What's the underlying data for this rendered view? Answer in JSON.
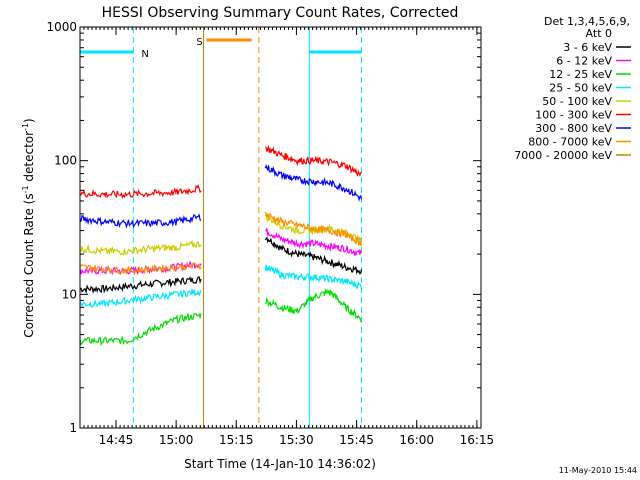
{
  "chart_data": {
    "type": "line",
    "title": "HESSI Observing Summary Count Rates, Corrected",
    "xlabel": "Start Time (14-Jan-10 14:36:02)",
    "ylabel_main": "Corrected Count Rate (s",
    "ylabel_sup1": "-1",
    "ylabel_mid": " detector",
    "ylabel_sup2": "-1",
    "ylabel_end": ")",
    "yscale": "log",
    "ylim": [
      1,
      1000
    ],
    "xlim_min": [
      0,
      100
    ],
    "x_unit": "minutes after 14:36:02",
    "yticks": [
      {
        "v": 1,
        "label": "1"
      },
      {
        "v": 10,
        "label": "10"
      },
      {
        "v": 100,
        "label": "100"
      },
      {
        "v": 1000,
        "label": "1000"
      }
    ],
    "xticks": [
      {
        "t": 8.97,
        "label": "14:45"
      },
      {
        "t": 23.97,
        "label": "15:00"
      },
      {
        "t": 38.97,
        "label": "15:15"
      },
      {
        "t": 53.97,
        "label": "15:30"
      },
      {
        "t": 68.97,
        "label": "15:45"
      },
      {
        "t": 83.97,
        "label": "16:00"
      },
      {
        "t": 98.97,
        "label": "16:15"
      }
    ],
    "legend_header": [
      "Det 1,3,4,5,6,9,",
      "Att 0"
    ],
    "series": [
      {
        "name": "3 - 6 keV",
        "color": "#000000",
        "before": [
          11,
          11,
          11.5,
          12,
          12.5,
          13
        ],
        "after": [
          27,
          22,
          20,
          19,
          17.5,
          16,
          15
        ]
      },
      {
        "name": "6 - 12 keV",
        "color": "#ff00ff",
        "before": [
          15,
          15,
          15,
          15.5,
          16,
          17
        ],
        "after": [
          30,
          26,
          24,
          24,
          23,
          22,
          20
        ]
      },
      {
        "name": "12 - 25 keV",
        "color": "#00dd00",
        "before": [
          4.5,
          4.5,
          4.5,
          5.5,
          6.5,
          7
        ],
        "after": [
          9,
          8,
          7.5,
          9.5,
          10.5,
          8,
          6.5
        ]
      },
      {
        "name": "25 - 50 keV",
        "color": "#00e6ff",
        "before": [
          8.5,
          8.5,
          9,
          9.5,
          10,
          10.5
        ],
        "after": [
          16,
          14,
          13.5,
          13.5,
          13,
          12.5,
          11.5
        ]
      },
      {
        "name": "50 - 100 keV",
        "color": "#cccc00",
        "before": [
          22,
          21,
          21,
          22,
          22.5,
          24
        ],
        "after": [
          38,
          33,
          30,
          30,
          31,
          29,
          25
        ]
      },
      {
        "name": "100 - 300 keV",
        "color": "#ff0000",
        "before": [
          57,
          56,
          56,
          57,
          58,
          62
        ],
        "after": [
          125,
          110,
          100,
          100,
          98,
          92,
          78
        ]
      },
      {
        "name": "300 - 800 keV",
        "color": "#0000ff",
        "before": [
          37,
          35,
          34,
          34,
          35,
          38
        ],
        "after": [
          90,
          78,
          72,
          70,
          68,
          62,
          52
        ]
      },
      {
        "name": "800 - 7000 keV",
        "color": "#ff8c00",
        "before": [
          16,
          15.5,
          15,
          15.5,
          16,
          16.5
        ],
        "after": [
          40,
          35,
          33,
          31,
          30,
          28,
          24
        ]
      },
      {
        "name": "7000 - 20000 keV",
        "color": "#b8860b",
        "before": [],
        "after": []
      }
    ],
    "bands": [
      {
        "label": "N",
        "color": "#00e6ff",
        "x0": 0,
        "x1": 13.3,
        "level": 650
      },
      {
        "label": "S",
        "color": "#ff8c00",
        "x0": 31.5,
        "x1": 42.8,
        "level": 800
      },
      {
        "label": "",
        "color": "#00e6ff",
        "x0": 57.2,
        "x1": 70.2,
        "level": 650
      }
    ],
    "vlines": [
      {
        "t": 0,
        "color": "#00e6ff",
        "style": "solid"
      },
      {
        "t": 13.3,
        "color": "#00e6ff",
        "style": "dashed"
      },
      {
        "t": 30.8,
        "color": "#b8860b",
        "style": "solid"
      },
      {
        "t": 44.6,
        "color": "#ff8c00",
        "style": "dashed"
      },
      {
        "t": 57.2,
        "color": "#00e6ff",
        "style": "solid"
      },
      {
        "t": 70.2,
        "color": "#00e6ff",
        "style": "dashed"
      }
    ],
    "segments": {
      "before_start": 0,
      "before_end": 30.2,
      "after_start": 46.2,
      "after_end": 70.2
    },
    "footer_date": "11-May-2010 15:44"
  }
}
